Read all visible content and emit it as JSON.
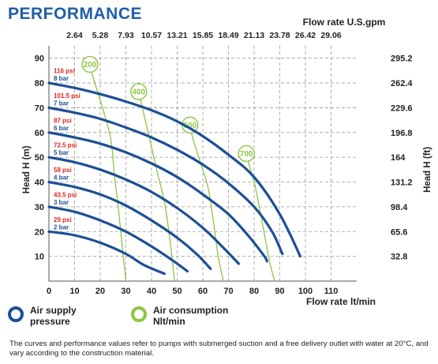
{
  "page": {
    "title": "PERFORMANCE",
    "footnote": "The curves and performance values refer to pumps with submerged suction and a free delivery outlet with water at 20°C, and vary according to the construction material."
  },
  "legend": {
    "pressure_label": "Air supply\npressure",
    "air_label": "Air consumption\nNlt/min"
  },
  "colors": {
    "title": "#1e5fa8",
    "pressure_curve": "#1d4f96",
    "air_curve": "#8cc640",
    "psi_label": "#e52421",
    "bar_label": "#1d4f96",
    "grid": "#9a9a9a"
  },
  "chart_data": {
    "type": "line",
    "xlabel": "Flow rate  lt/min",
    "ylabel": "Head H (m)",
    "top_xlabel": "Flow rate U.S.gpm",
    "right_ylabel": "Head H (ft)",
    "xlim": [
      0,
      120
    ],
    "ylim": [
      0,
      95
    ],
    "x_ticks": [
      0,
      10,
      20,
      30,
      40,
      50,
      60,
      70,
      80,
      90,
      100,
      110
    ],
    "y_ticks": [
      10,
      20,
      30,
      40,
      50,
      60,
      70,
      80,
      90
    ],
    "top_ticks": [
      {
        "label": "2.64",
        "x": 10
      },
      {
        "label": "5.28",
        "x": 20
      },
      {
        "label": "7.93",
        "x": 30
      },
      {
        "label": "10.57",
        "x": 40
      },
      {
        "label": "13.21",
        "x": 50
      },
      {
        "label": "15.85",
        "x": 60
      },
      {
        "label": "18.49",
        "x": 70
      },
      {
        "label": "21.13",
        "x": 80
      },
      {
        "label": "23.78",
        "x": 90
      },
      {
        "label": "26.42",
        "x": 100
      },
      {
        "label": "29.06",
        "x": 110
      }
    ],
    "right_ticks": [
      {
        "label": "32.8",
        "y": 10
      },
      {
        "label": "65.6",
        "y": 20
      },
      {
        "label": "98.4",
        "y": 30
      },
      {
        "label": "131.2",
        "y": 40
      },
      {
        "label": "164",
        "y": 50
      },
      {
        "label": "196.8",
        "y": 60
      },
      {
        "label": "229.6",
        "y": 70
      },
      {
        "label": "262.4",
        "y": 80
      },
      {
        "label": "295.2",
        "y": 90
      }
    ],
    "grid": true,
    "pressure_series": [
      {
        "psi": "29 psi",
        "bar": "2 bar",
        "points": [
          [
            0,
            20
          ],
          [
            10,
            18.5
          ],
          [
            20,
            15.5
          ],
          [
            30,
            11
          ],
          [
            37,
            6.5
          ],
          [
            45,
            3
          ]
        ]
      },
      {
        "psi": "43.5 psi",
        "bar": "3 bar",
        "points": [
          [
            0,
            30
          ],
          [
            10,
            28
          ],
          [
            20,
            24.5
          ],
          [
            30,
            20
          ],
          [
            40,
            14
          ],
          [
            48,
            8.5
          ],
          [
            54,
            4
          ]
        ]
      },
      {
        "psi": "58 psi",
        "bar": "4 bar",
        "points": [
          [
            0,
            40
          ],
          [
            10,
            38
          ],
          [
            20,
            35
          ],
          [
            30,
            30.5
          ],
          [
            40,
            24.5
          ],
          [
            50,
            17.5
          ],
          [
            58,
            10.5
          ],
          [
            63,
            5
          ]
        ]
      },
      {
        "psi": "72.5 psi",
        "bar": "5 bar",
        "points": [
          [
            0,
            50
          ],
          [
            10,
            48
          ],
          [
            20,
            45
          ],
          [
            30,
            41
          ],
          [
            40,
            36
          ],
          [
            50,
            29.5
          ],
          [
            60,
            21.5
          ],
          [
            68,
            13.5
          ],
          [
            74,
            7
          ]
        ]
      },
      {
        "psi": "87 psi",
        "bar": "6 bar",
        "points": [
          [
            0,
            60
          ],
          [
            10,
            58
          ],
          [
            20,
            55.5
          ],
          [
            30,
            52
          ],
          [
            40,
            47.5
          ],
          [
            50,
            42
          ],
          [
            60,
            35
          ],
          [
            70,
            27
          ],
          [
            78,
            18
          ],
          [
            84,
            10
          ],
          [
            85,
            8
          ]
        ]
      },
      {
        "psi": "101.5 psi",
        "bar": "7 bar",
        "points": [
          [
            0,
            70
          ],
          [
            10,
            68
          ],
          [
            20,
            65.5
          ],
          [
            30,
            62
          ],
          [
            40,
            58
          ],
          [
            50,
            53
          ],
          [
            60,
            47
          ],
          [
            70,
            39.5
          ],
          [
            80,
            30
          ],
          [
            87,
            20
          ],
          [
            91,
            11
          ]
        ]
      },
      {
        "psi": "116 psi",
        "bar": "8 bar",
        "points": [
          [
            0,
            80
          ],
          [
            10,
            78
          ],
          [
            20,
            75.5
          ],
          [
            30,
            72.5
          ],
          [
            40,
            69
          ],
          [
            50,
            64.5
          ],
          [
            60,
            58.5
          ],
          [
            70,
            51
          ],
          [
            80,
            42
          ],
          [
            90,
            27
          ],
          [
            98,
            10
          ]
        ]
      }
    ],
    "air_series": [
      {
        "label": "200",
        "points": [
          [
            16,
            87.5
          ],
          [
            17,
            83
          ],
          [
            20,
            73
          ],
          [
            24,
            58
          ],
          [
            25.5,
            43
          ],
          [
            27,
            30
          ],
          [
            28.5,
            15
          ],
          [
            30,
            0
          ]
        ]
      },
      {
        "label": "400",
        "points": [
          [
            35,
            76.5
          ],
          [
            36,
            72
          ],
          [
            38,
            63
          ],
          [
            42,
            45
          ],
          [
            45,
            32
          ],
          [
            47,
            18
          ],
          [
            49,
            0
          ]
        ]
      },
      {
        "label": "600",
        "points": [
          [
            55,
            63
          ],
          [
            56,
            58
          ],
          [
            59,
            48
          ],
          [
            62,
            38
          ],
          [
            64,
            25
          ],
          [
            66,
            10
          ],
          [
            68,
            0
          ]
        ]
      },
      {
        "label": "700",
        "points": [
          [
            77,
            51.5
          ],
          [
            78,
            47
          ],
          [
            80,
            40
          ],
          [
            82,
            30
          ],
          [
            84,
            19
          ],
          [
            86,
            8
          ],
          [
            88,
            0
          ]
        ]
      }
    ]
  }
}
